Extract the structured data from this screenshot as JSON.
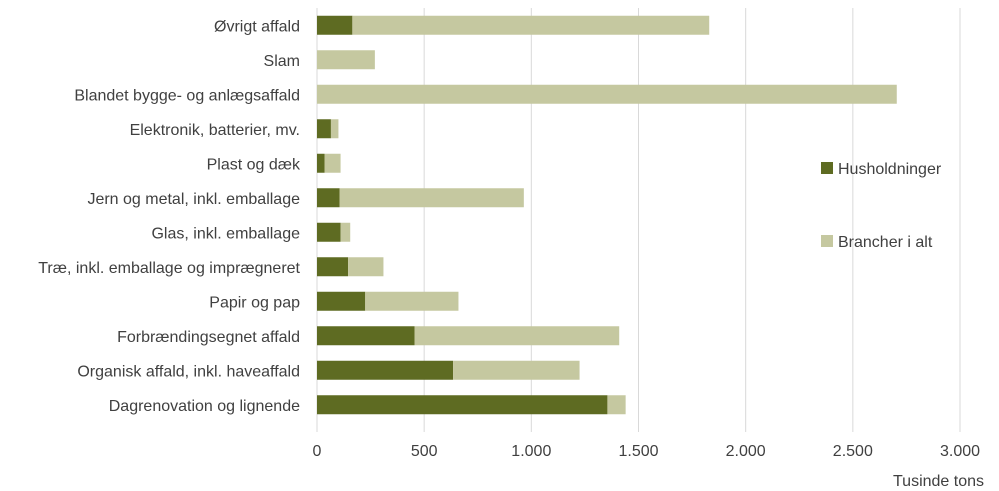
{
  "chart_data": {
    "type": "bar",
    "orientation": "horizontal",
    "stacked": true,
    "categories": [
      "Dagrenovation og lignende",
      "Organisk affald, inkl. haveaffald",
      "Forbrændingsegnet affald",
      "Papir og pap",
      "Træ, inkl. emballage og imprægneret",
      "Glas, inkl. emballage",
      "Jern og metal, inkl. emballage",
      "Plast og dæk",
      "Elektronik, batterier, mv.",
      "Blandet bygge- og anlægsaffald",
      "Slam",
      "Øvrigt affald"
    ],
    "series": [
      {
        "name": "Husholdninger",
        "color": "#5e6b22",
        "values": [
          1355,
          635,
          455,
          225,
          145,
          110,
          105,
          35,
          65,
          0,
          0,
          165
        ]
      },
      {
        "name": "Brancher i alt",
        "color": "#c5c8a0",
        "values": [
          85,
          590,
          955,
          435,
          165,
          45,
          860,
          75,
          35,
          2705,
          270,
          1665
        ]
      }
    ],
    "xlabel": "Tusinde tons",
    "xlim": [
      0,
      3000
    ],
    "xticks": [
      0,
      500,
      1000,
      1500,
      2000,
      2500,
      3000
    ],
    "xtick_labels": [
      "0",
      "500",
      "1.000",
      "1.500",
      "2.000",
      "2.500",
      "3.000"
    ],
    "grid": "vertical",
    "legend_position": "right"
  }
}
